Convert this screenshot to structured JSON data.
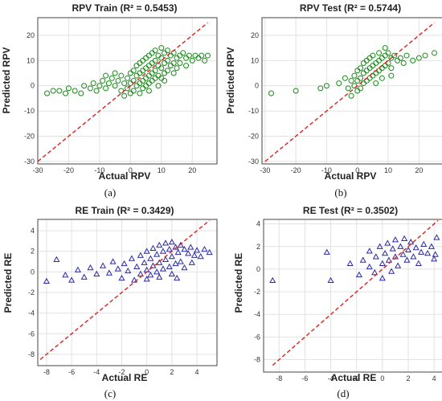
{
  "chart_data": [
    {
      "type": "scatter",
      "title": "RPV Train (R² = 0.5453)",
      "xlabel": "Actual RPV",
      "ylabel": "Predicted RPV",
      "caption": "(a)",
      "xlim": [
        -30,
        28
      ],
      "ylim": [
        -31,
        27
      ],
      "xticks": [
        -30,
        -20,
        -10,
        0,
        10,
        20
      ],
      "yticks": [
        -30,
        -20,
        -10,
        0,
        10,
        20
      ],
      "marker": "circle",
      "color": "#1a8a1a",
      "ideal_line": {
        "from": [
          -30,
          -30
        ],
        "to": [
          25,
          25
        ],
        "color": "#e02020",
        "style": "dashed"
      },
      "points": [
        [
          -27,
          -3
        ],
        [
          -25,
          -2
        ],
        [
          -23,
          -2
        ],
        [
          -21,
          -3
        ],
        [
          -20,
          -1
        ],
        [
          -18,
          -2
        ],
        [
          -16,
          -3
        ],
        [
          -15,
          0
        ],
        [
          -13,
          -1
        ],
        [
          -12,
          1
        ],
        [
          -11,
          -2
        ],
        [
          -10,
          0
        ],
        [
          -9,
          2
        ],
        [
          -8,
          -1
        ],
        [
          -7,
          1
        ],
        [
          -6,
          3
        ],
        [
          -5,
          0
        ],
        [
          -4,
          2
        ],
        [
          -3,
          -2
        ],
        [
          -3,
          4
        ],
        [
          -2,
          1
        ],
        [
          -2,
          -4
        ],
        [
          -1,
          3
        ],
        [
          -1,
          -1
        ],
        [
          0,
          5
        ],
        [
          0,
          1
        ],
        [
          0,
          -3
        ],
        [
          1,
          6
        ],
        [
          1,
          2
        ],
        [
          1,
          -2
        ],
        [
          2,
          8
        ],
        [
          2,
          4
        ],
        [
          2,
          0
        ],
        [
          3,
          9
        ],
        [
          3,
          5
        ],
        [
          3,
          1
        ],
        [
          3,
          -3
        ],
        [
          4,
          10
        ],
        [
          4,
          6
        ],
        [
          4,
          2
        ],
        [
          4,
          -1
        ],
        [
          5,
          11
        ],
        [
          5,
          7
        ],
        [
          5,
          3
        ],
        [
          5,
          0
        ],
        [
          6,
          12
        ],
        [
          6,
          8
        ],
        [
          6,
          4
        ],
        [
          6,
          1
        ],
        [
          7,
          13
        ],
        [
          7,
          9
        ],
        [
          7,
          5
        ],
        [
          7,
          2
        ],
        [
          8,
          14
        ],
        [
          8,
          10
        ],
        [
          8,
          6
        ],
        [
          8,
          3
        ],
        [
          9,
          12
        ],
        [
          9,
          8
        ],
        [
          9,
          4
        ],
        [
          10,
          15
        ],
        [
          10,
          11
        ],
        [
          10,
          7
        ],
        [
          10,
          3
        ],
        [
          11,
          13
        ],
        [
          11,
          9
        ],
        [
          11,
          5
        ],
        [
          12,
          14
        ],
        [
          12,
          10
        ],
        [
          12,
          6
        ],
        [
          13,
          12
        ],
        [
          13,
          8
        ],
        [
          14,
          13
        ],
        [
          14,
          9
        ],
        [
          15,
          11
        ],
        [
          15,
          7
        ],
        [
          16,
          12
        ],
        [
          16,
          9
        ],
        [
          17,
          13
        ],
        [
          18,
          11
        ],
        [
          18,
          8
        ],
        [
          19,
          12
        ],
        [
          20,
          10
        ],
        [
          21,
          12
        ],
        [
          22,
          11
        ],
        [
          23,
          12
        ],
        [
          24,
          10
        ],
        [
          25,
          12
        ],
        [
          6,
          -2
        ],
        [
          9,
          0
        ],
        [
          11,
          2
        ],
        [
          14,
          5
        ],
        [
          -8,
          4
        ],
        [
          -5,
          5
        ]
      ]
    },
    {
      "type": "scatter",
      "title": "RPV Test (R² = 0.5744)",
      "xlabel": "Actual RPV",
      "ylabel": "Predicted RPV",
      "caption": "(b)",
      "xlim": [
        -31,
        28
      ],
      "ylim": [
        -31,
        27
      ],
      "xticks": [
        -30,
        -20,
        -10,
        0,
        10,
        20
      ],
      "yticks": [
        -30,
        -20,
        -10,
        0,
        10,
        20
      ],
      "marker": "circle",
      "color": "#1a8a1a",
      "ideal_line": {
        "from": [
          -30,
          -30
        ],
        "to": [
          25,
          25
        ],
        "color": "#e02020",
        "style": "dashed"
      },
      "points": [
        [
          -28,
          -3
        ],
        [
          -20,
          -2
        ],
        [
          -12,
          -1
        ],
        [
          -10,
          0
        ],
        [
          -6,
          1
        ],
        [
          -4,
          3
        ],
        [
          -3,
          -1
        ],
        [
          -2,
          2
        ],
        [
          -2,
          -4
        ],
        [
          -1,
          4
        ],
        [
          -1,
          0
        ],
        [
          0,
          6
        ],
        [
          0,
          2
        ],
        [
          0,
          -2
        ],
        [
          1,
          7
        ],
        [
          1,
          3
        ],
        [
          1,
          -1
        ],
        [
          2,
          9
        ],
        [
          2,
          5
        ],
        [
          2,
          1
        ],
        [
          3,
          10
        ],
        [
          3,
          6
        ],
        [
          3,
          2
        ],
        [
          4,
          11
        ],
        [
          4,
          7
        ],
        [
          4,
          3
        ],
        [
          5,
          12
        ],
        [
          5,
          8
        ],
        [
          5,
          4
        ],
        [
          6,
          9
        ],
        [
          6,
          5
        ],
        [
          6,
          1
        ],
        [
          7,
          13
        ],
        [
          7,
          10
        ],
        [
          7,
          6
        ],
        [
          8,
          11
        ],
        [
          8,
          7
        ],
        [
          9,
          15
        ],
        [
          9,
          12
        ],
        [
          9,
          8
        ],
        [
          10,
          13
        ],
        [
          10,
          9
        ],
        [
          11,
          11
        ],
        [
          11,
          7
        ],
        [
          12,
          12
        ],
        [
          13,
          10
        ],
        [
          14,
          11
        ],
        [
          15,
          9
        ],
        [
          16,
          12
        ],
        [
          18,
          10
        ],
        [
          20,
          11
        ],
        [
          22,
          12
        ],
        [
          25,
          13
        ],
        [
          8,
          3
        ],
        [
          11,
          4
        ]
      ]
    },
    {
      "type": "scatter",
      "title": "RE Train (R² = 0.3429)",
      "xlabel": "Actual RE",
      "ylabel": "Predicted RE",
      "caption": "(c)",
      "xlim": [
        -8.7,
        5.6
      ],
      "ylim": [
        -9.1,
        5.1
      ],
      "xticks": [
        -8,
        -6,
        -4,
        -2,
        0,
        2,
        4
      ],
      "yticks": [
        -8,
        -6,
        -4,
        -2,
        0,
        2,
        4
      ],
      "marker": "triangle",
      "color": "#2a2aa8",
      "ideal_line": {
        "from": [
          -8.5,
          -8.5
        ],
        "to": [
          5,
          5
        ],
        "color": "#e02020",
        "style": "dashed"
      },
      "points": [
        [
          -8,
          -0.9
        ],
        [
          -7.2,
          1.2
        ],
        [
          -6.5,
          -0.3
        ],
        [
          -6,
          -0.8
        ],
        [
          -5.5,
          0.2
        ],
        [
          -5,
          -0.5
        ],
        [
          -4.5,
          0.4
        ],
        [
          -4,
          -0.2
        ],
        [
          -3.5,
          0.6
        ],
        [
          -3,
          -0.1
        ],
        [
          -2.7,
          1.0
        ],
        [
          -2.3,
          0.3
        ],
        [
          -2,
          -0.6
        ],
        [
          -1.8,
          0.8
        ],
        [
          -1.5,
          0.1
        ],
        [
          -1.2,
          1.3
        ],
        [
          -1.0,
          -0.8
        ],
        [
          -0.8,
          0.5
        ],
        [
          -0.5,
          1.6
        ],
        [
          -0.5,
          -0.2
        ],
        [
          -0.2,
          0.9
        ],
        [
          0,
          2.0
        ],
        [
          0,
          0.2
        ],
        [
          0,
          -0.7
        ],
        [
          0.3,
          1.3
        ],
        [
          0.3,
          -0.3
        ],
        [
          0.5,
          2.3
        ],
        [
          0.5,
          0.6
        ],
        [
          0.8,
          1.7
        ],
        [
          0.8,
          0.0
        ],
        [
          1.0,
          2.6
        ],
        [
          1.0,
          0.9
        ],
        [
          1.0,
          -0.5
        ],
        [
          1.3,
          2.0
        ],
        [
          1.3,
          0.3
        ],
        [
          1.5,
          2.8
        ],
        [
          1.5,
          1.2
        ],
        [
          1.8,
          2.2
        ],
        [
          1.8,
          0.5
        ],
        [
          2.0,
          2.9
        ],
        [
          2.0,
          1.5
        ],
        [
          2.0,
          -0.2
        ],
        [
          2.3,
          2.4
        ],
        [
          2.3,
          0.8
        ],
        [
          2.5,
          1.9
        ],
        [
          2.7,
          2.6
        ],
        [
          2.7,
          1.0
        ],
        [
          3.0,
          2.2
        ],
        [
          3.0,
          0.4
        ],
        [
          3.3,
          1.8
        ],
        [
          3.5,
          2.4
        ],
        [
          3.8,
          1.6
        ],
        [
          4.0,
          2.1
        ],
        [
          4.3,
          1.5
        ],
        [
          4.6,
          2.2
        ],
        [
          5.0,
          1.9
        ],
        [
          3.6,
          0.9
        ],
        [
          2.4,
          -0.6
        ]
      ]
    },
    {
      "type": "scatter",
      "title": "RE Test (R² = 0.3502)",
      "xlabel": "Actual RE",
      "ylabel": "Predicted RE",
      "caption": "(d)",
      "xlim": [
        -9.2,
        4.8
      ],
      "ylim": [
        -9.1,
        4.4
      ],
      "xticks": [
        -8,
        -6,
        -4,
        -2,
        0,
        2,
        4
      ],
      "yticks": [
        -8,
        -6,
        -4,
        -2,
        0,
        2,
        4
      ],
      "marker": "triangle",
      "color": "#2a2aa8",
      "ideal_line": {
        "from": [
          -8.5,
          -8.5
        ],
        "to": [
          4.3,
          4.3
        ],
        "color": "#e02020",
        "style": "dashed"
      },
      "points": [
        [
          -8.5,
          -1.0
        ],
        [
          -4.3,
          1.5
        ],
        [
          -4.0,
          -1.0
        ],
        [
          -2.5,
          0.5
        ],
        [
          -1.8,
          -0.5
        ],
        [
          -1.5,
          0.8
        ],
        [
          -1.0,
          0.2
        ],
        [
          -1.0,
          1.6
        ],
        [
          -0.6,
          -0.3
        ],
        [
          -0.5,
          1.1
        ],
        [
          -0.2,
          2.0
        ],
        [
          0,
          0.5
        ],
        [
          0,
          -0.8
        ],
        [
          0.2,
          1.4
        ],
        [
          0.4,
          2.3
        ],
        [
          0.5,
          0.8
        ],
        [
          0.7,
          -0.2
        ],
        [
          0.8,
          1.8
        ],
        [
          1.0,
          2.6
        ],
        [
          1.0,
          1.1
        ],
        [
          1.2,
          0.3
        ],
        [
          1.4,
          2.0
        ],
        [
          1.6,
          1.3
        ],
        [
          1.7,
          2.7
        ],
        [
          1.9,
          0.8
        ],
        [
          2.0,
          1.7
        ],
        [
          2.2,
          2.4
        ],
        [
          2.4,
          1.1
        ],
        [
          2.6,
          1.9
        ],
        [
          2.8,
          0.5
        ],
        [
          3.0,
          1.5
        ],
        [
          3.2,
          2.2
        ],
        [
          3.5,
          1.4
        ],
        [
          3.8,
          2.0
        ],
        [
          4.1,
          1.3
        ],
        [
          4.2,
          2.8
        ],
        [
          4.0,
          0.9
        ]
      ]
    }
  ]
}
